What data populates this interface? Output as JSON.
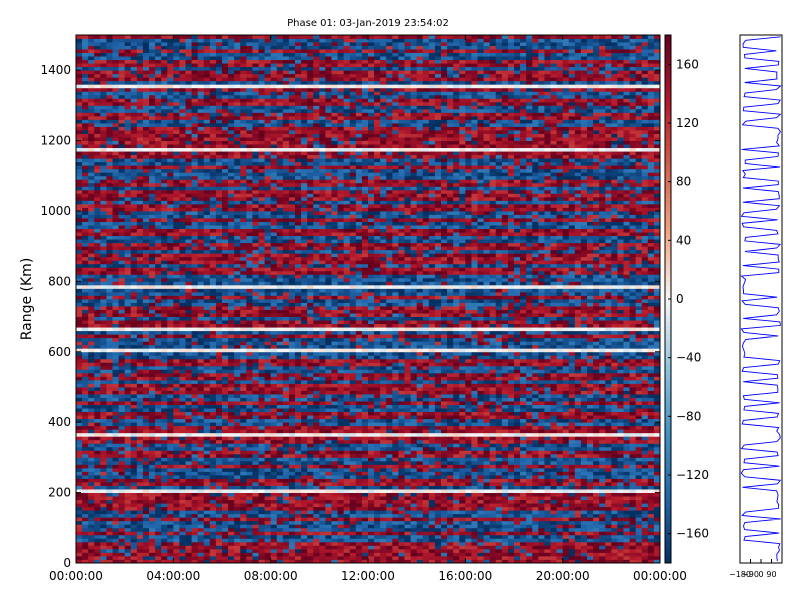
{
  "chart_data": [
    {
      "type": "heatmap",
      "title": "Phase 01: 03-Jan-2019 23:54:02",
      "xlabel": "",
      "ylabel": "Range (Km)",
      "x_ticks": [
        "00:00:00",
        "04:00:00",
        "08:00:00",
        "12:00:00",
        "16:00:00",
        "20:00:00",
        "00:00:00"
      ],
      "x_range_hours": [
        0,
        24
      ],
      "y_ticks": [
        0,
        200,
        400,
        600,
        800,
        1000,
        1200,
        1400
      ],
      "ylim": [
        0,
        1500
      ],
      "grid": false,
      "colorbar": {
        "ticks": [
          -160,
          -120,
          -80,
          -40,
          0,
          40,
          80,
          120,
          160
        ],
        "range": [
          -180,
          180
        ],
        "colors": [
          "#053061",
          "#2166ac",
          "#4393c3",
          "#92c5de",
          "#f7f7f7",
          "#f4a582",
          "#d6604d",
          "#b2182b",
          "#67001f"
        ]
      },
      "note_values": "phase values alternate between strong red (~+150) and blue (~-150) horizontal bands across range gates"
    },
    {
      "type": "line",
      "title": "",
      "x_ticks": [
        "−180",
        "−90",
        "0",
        "90"
      ],
      "xlim": [
        -180,
        180
      ],
      "ylim": [
        0,
        1500
      ],
      "series_color": "#0000ff"
    }
  ]
}
